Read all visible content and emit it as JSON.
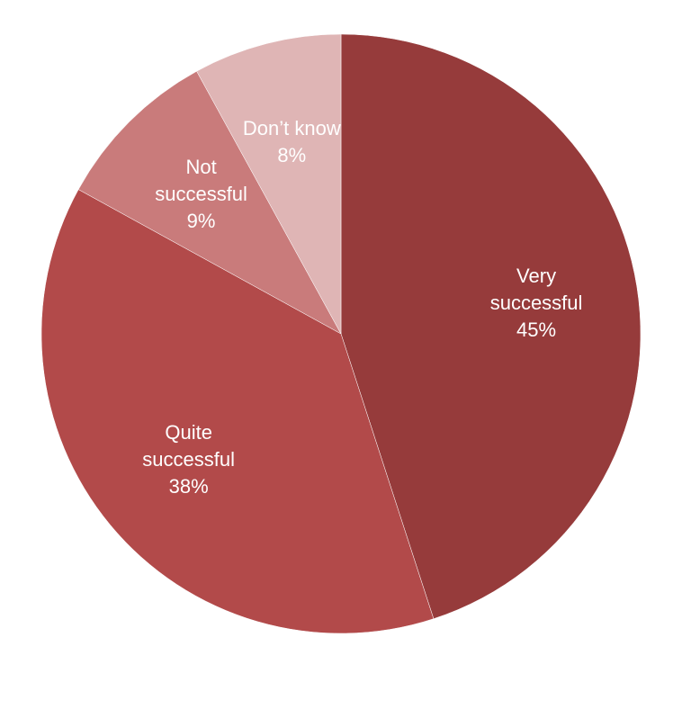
{
  "chart_data": {
    "type": "pie",
    "categories": [
      "Very successful",
      "Quite successful",
      "Not successful",
      "Don’t know"
    ],
    "values": [
      45,
      38,
      9,
      8
    ],
    "value_labels": [
      "45%",
      "38%",
      "9%",
      "8%"
    ],
    "colors": [
      "#963b3b",
      "#b24a4a",
      "#c97b7b",
      "#dfb5b5"
    ]
  }
}
